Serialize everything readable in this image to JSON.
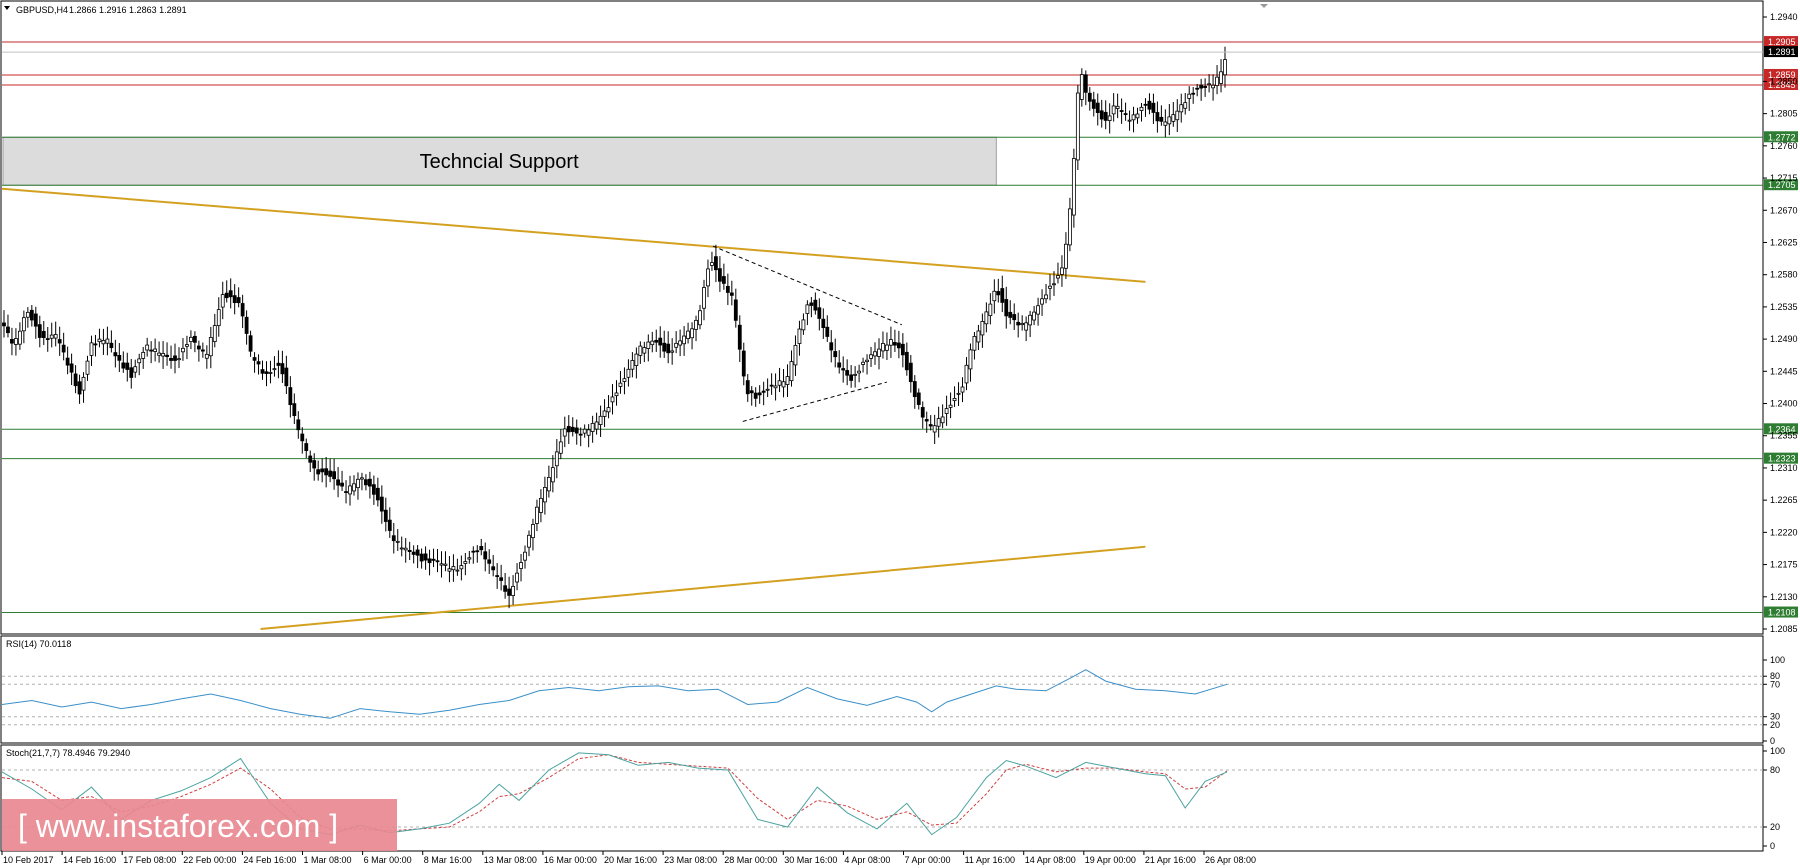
{
  "header": {
    "symbol": "GBPUSD,H4",
    "ohlc": "1.2866 1.2916 1.2863 1.2891"
  },
  "zone": {
    "label": "Techncial Support",
    "upper": 1.2772,
    "lower": 1.2705
  },
  "watermark": {
    "text": "[ www.instaforex.com ]"
  },
  "colors": {
    "candle": "#000000",
    "trendline": "#d4a020",
    "support_line": "#2e7d32",
    "resistance_line": "#c62828",
    "rsi_line": "#3a8fc8",
    "stoch_main": "#4aa3a0",
    "stoch_signal": "#d04040",
    "zone_fill": "#dcdcdc",
    "watermark_bg": "#e88890"
  },
  "chart_data": [
    {
      "type": "candlestick",
      "name": "GBPUSD,H4",
      "ylim": [
        1.2085,
        1.294
      ],
      "y_ticks": [
        "1.2940",
        "1.2850",
        "1.2805",
        "1.2760",
        "1.2715",
        "1.2670",
        "1.2625",
        "1.2580",
        "1.2535",
        "1.2490",
        "1.2445",
        "1.2400",
        "1.2355",
        "1.2310",
        "1.2265",
        "1.2220",
        "1.2175",
        "1.2130",
        "1.2085"
      ],
      "x_labels": [
        "10 Feb 2017",
        "14 Feb 16:00",
        "17 Feb 08:00",
        "22 Feb 00:00",
        "24 Feb 16:00",
        "1 Mar 08:00",
        "6 Mar 00:00",
        "8 Mar 16:00",
        "13 Mar 08:00",
        "16 Mar 00:00",
        "20 Mar 16:00",
        "23 Mar 08:00",
        "28 Mar 00:00",
        "30 Mar 16:00",
        "4 Apr 08:00",
        "7 Apr 00:00",
        "11 Apr 16:00",
        "14 Apr 08:00",
        "19 Apr 00:00",
        "21 Apr 16:00",
        "26 Apr 08:00"
      ],
      "current_price": "1.2891",
      "price_path": [
        [
          0,
          1.2515
        ],
        [
          12,
          1.2485
        ],
        [
          25,
          1.253
        ],
        [
          40,
          1.2485
        ],
        [
          55,
          1.25
        ],
        [
          67,
          1.2455
        ],
        [
          78,
          1.241
        ],
        [
          90,
          1.248
        ],
        [
          105,
          1.2495
        ],
        [
          118,
          1.246
        ],
        [
          130,
          1.2435
        ],
        [
          145,
          1.248
        ],
        [
          160,
          1.2475
        ],
        [
          175,
          1.2455
        ],
        [
          190,
          1.249
        ],
        [
          205,
          1.247
        ],
        [
          222,
          1.255
        ],
        [
          240,
          1.2535
        ],
        [
          250,
          1.2475
        ],
        [
          265,
          1.244
        ],
        [
          280,
          1.245
        ],
        [
          292,
          1.239
        ],
        [
          305,
          1.234
        ],
        [
          315,
          1.2305
        ],
        [
          330,
          1.2295
        ],
        [
          345,
          1.228
        ],
        [
          360,
          1.23
        ],
        [
          375,
          1.227
        ],
        [
          392,
          1.2215
        ],
        [
          410,
          1.2195
        ],
        [
          425,
          1.2175
        ],
        [
          440,
          1.218
        ],
        [
          460,
          1.217
        ],
        [
          480,
          1.2195
        ],
        [
          500,
          1.216
        ],
        [
          510,
          1.213
        ],
        [
          525,
          1.2185
        ],
        [
          540,
          1.2265
        ],
        [
          553,
          1.231
        ],
        [
          565,
          1.236
        ],
        [
          580,
          1.2355
        ],
        [
          595,
          1.2375
        ],
        [
          610,
          1.2395
        ],
        [
          625,
          1.243
        ],
        [
          640,
          1.248
        ],
        [
          655,
          1.249
        ],
        [
          670,
          1.2465
        ],
        [
          685,
          1.2495
        ],
        [
          700,
          1.252
        ],
        [
          712,
          1.26
        ],
        [
          722,
          1.257
        ],
        [
          735,
          1.255
        ],
        [
          748,
          1.242
        ],
        [
          760,
          1.2405
        ],
        [
          772,
          1.242
        ],
        [
          790,
          1.244
        ],
        [
          800,
          1.2495
        ],
        [
          812,
          1.254
        ],
        [
          825,
          1.251
        ],
        [
          840,
          1.246
        ],
        [
          855,
          1.243
        ],
        [
          870,
          1.246
        ],
        [
          885,
          1.2485
        ],
        [
          895,
          1.249
        ],
        [
          905,
          1.247
        ],
        [
          915,
          1.242
        ],
        [
          925,
          1.2385
        ],
        [
          935,
          1.237
        ],
        [
          950,
          1.239
        ],
        [
          965,
          1.2415
        ],
        [
          975,
          1.2485
        ],
        [
          990,
          1.253
        ],
        [
          1000,
          1.256
        ],
        [
          1010,
          1.252
        ],
        [
          1025,
          1.251
        ],
        [
          1040,
          1.2535
        ],
        [
          1055,
          1.256
        ],
        [
          1065,
          1.258
        ],
        [
          1072,
          1.264
        ],
        [
          1076,
          1.2705
        ],
        [
          1080,
          1.279
        ],
        [
          1084,
          1.288
        ],
        [
          1090,
          1.2835
        ],
        [
          1100,
          1.2805
        ],
        [
          1110,
          1.279
        ],
        [
          1120,
          1.282
        ],
        [
          1135,
          1.28
        ],
        [
          1150,
          1.2815
        ],
        [
          1165,
          1.279
        ],
        [
          1180,
          1.281
        ],
        [
          1195,
          1.283
        ],
        [
          1210,
          1.284
        ],
        [
          1220,
          1.285
        ],
        [
          1228,
          1.2875
        ],
        [
          1232,
          1.2891
        ]
      ],
      "trendlines": [
        {
          "from": [
            0,
            1.27
          ],
          "to": [
            1150,
            1.257
          ]
        },
        {
          "from": [
            260,
            1.2085
          ],
          "to": [
            1150,
            1.22
          ]
        }
      ],
      "triangle": [
        {
          "from": [
            715,
            1.262
          ],
          "to": [
            905,
            1.251
          ]
        },
        {
          "from": [
            745,
            1.2375
          ],
          "to": [
            890,
            1.243
          ]
        }
      ],
      "horizontal_levels": [
        {
          "value": 1.2905,
          "label": "1.2905",
          "kind": "resistance"
        },
        {
          "value": 1.2859,
          "label": "1.2859",
          "kind": "resistance"
        },
        {
          "value": 1.2845,
          "label": "1.2845",
          "kind": "resistance"
        },
        {
          "value": 1.2772,
          "label": "1.2772",
          "kind": "support"
        },
        {
          "value": 1.2705,
          "label": "1.2705",
          "kind": "support"
        },
        {
          "value": 1.2364,
          "label": "1.2364",
          "kind": "support"
        },
        {
          "value": 1.2323,
          "label": "1.2323",
          "kind": "support"
        },
        {
          "value": 1.2108,
          "label": "1.2108",
          "kind": "support"
        }
      ]
    },
    {
      "type": "line",
      "name": "RSI(14) 70.0118",
      "ylim": [
        0,
        100
      ],
      "y_ticks": [
        "100",
        "80",
        "70",
        "30",
        "20",
        "0"
      ],
      "guides": [
        80,
        70,
        30,
        20
      ],
      "path": [
        [
          0,
          45
        ],
        [
          30,
          50
        ],
        [
          60,
          42
        ],
        [
          90,
          48
        ],
        [
          120,
          40
        ],
        [
          150,
          45
        ],
        [
          180,
          52
        ],
        [
          210,
          58
        ],
        [
          240,
          50
        ],
        [
          270,
          40
        ],
        [
          300,
          33
        ],
        [
          330,
          28
        ],
        [
          360,
          40
        ],
        [
          390,
          36
        ],
        [
          420,
          33
        ],
        [
          450,
          38
        ],
        [
          480,
          45
        ],
        [
          510,
          50
        ],
        [
          540,
          62
        ],
        [
          570,
          66
        ],
        [
          600,
          62
        ],
        [
          630,
          67
        ],
        [
          660,
          68
        ],
        [
          690,
          62
        ],
        [
          720,
          64
        ],
        [
          750,
          45
        ],
        [
          780,
          48
        ],
        [
          810,
          66
        ],
        [
          840,
          52
        ],
        [
          870,
          44
        ],
        [
          900,
          55
        ],
        [
          920,
          48
        ],
        [
          935,
          36
        ],
        [
          950,
          48
        ],
        [
          975,
          58
        ],
        [
          1000,
          68
        ],
        [
          1020,
          64
        ],
        [
          1050,
          62
        ],
        [
          1075,
          78
        ],
        [
          1090,
          88
        ],
        [
          1110,
          74
        ],
        [
          1140,
          64
        ],
        [
          1170,
          62
        ],
        [
          1200,
          58
        ],
        [
          1232,
          70
        ]
      ]
    },
    {
      "type": "line",
      "name": "Stoch(21,7,7) 78.4946 79.2940",
      "ylim": [
        0,
        100
      ],
      "y_ticks": [
        "100",
        "80",
        "20",
        "0"
      ],
      "guides": [
        80,
        20
      ],
      "series": [
        {
          "path": [
            [
              0,
              78
            ],
            [
              30,
              60
            ],
            [
              60,
              38
            ],
            [
              90,
              62
            ],
            [
              120,
              28
            ],
            [
              150,
              48
            ],
            [
              180,
              58
            ],
            [
              210,
              72
            ],
            [
              240,
              92
            ],
            [
              270,
              45
            ],
            [
              300,
              18
            ],
            [
              330,
              12
            ],
            [
              360,
              22
            ],
            [
              390,
              14
            ],
            [
              420,
              18
            ],
            [
              450,
              24
            ],
            [
              480,
              45
            ],
            [
              500,
              65
            ],
            [
              520,
              48
            ],
            [
              550,
              80
            ],
            [
              580,
              98
            ],
            [
              610,
              96
            ],
            [
              640,
              85
            ],
            [
              670,
              88
            ],
            [
              700,
              82
            ],
            [
              730,
              80
            ],
            [
              760,
              28
            ],
            [
              790,
              20
            ],
            [
              820,
              62
            ],
            [
              850,
              35
            ],
            [
              880,
              18
            ],
            [
              910,
              45
            ],
            [
              935,
              12
            ],
            [
              960,
              30
            ],
            [
              990,
              72
            ],
            [
              1010,
              90
            ],
            [
              1030,
              84
            ],
            [
              1060,
              72
            ],
            [
              1090,
              88
            ],
            [
              1120,
              82
            ],
            [
              1150,
              76
            ],
            [
              1170,
              74
            ],
            [
              1190,
              40
            ],
            [
              1210,
              68
            ],
            [
              1232,
              78
            ]
          ]
        },
        {
          "path": [
            [
              0,
              72
            ],
            [
              30,
              68
            ],
            [
              60,
              48
            ],
            [
              90,
              52
            ],
            [
              120,
              36
            ],
            [
              150,
              42
            ],
            [
              180,
              52
            ],
            [
              210,
              65
            ],
            [
              240,
              82
            ],
            [
              270,
              60
            ],
            [
              300,
              30
            ],
            [
              330,
              18
            ],
            [
              360,
              18
            ],
            [
              390,
              16
            ],
            [
              420,
              18
            ],
            [
              450,
              20
            ],
            [
              480,
              36
            ],
            [
              500,
              52
            ],
            [
              520,
              55
            ],
            [
              550,
              72
            ],
            [
              580,
              92
            ],
            [
              610,
              96
            ],
            [
              640,
              88
            ],
            [
              670,
              86
            ],
            [
              700,
              84
            ],
            [
              730,
              82
            ],
            [
              760,
              50
            ],
            [
              790,
              28
            ],
            [
              820,
              48
            ],
            [
              850,
              42
            ],
            [
              880,
              28
            ],
            [
              910,
              36
            ],
            [
              935,
              22
            ],
            [
              960,
              24
            ],
            [
              990,
              55
            ],
            [
              1010,
              80
            ],
            [
              1030,
              86
            ],
            [
              1060,
              78
            ],
            [
              1090,
              82
            ],
            [
              1120,
              82
            ],
            [
              1150,
              78
            ],
            [
              1170,
              76
            ],
            [
              1190,
              60
            ],
            [
              1210,
              62
            ],
            [
              1232,
              79
            ]
          ]
        }
      ]
    }
  ]
}
